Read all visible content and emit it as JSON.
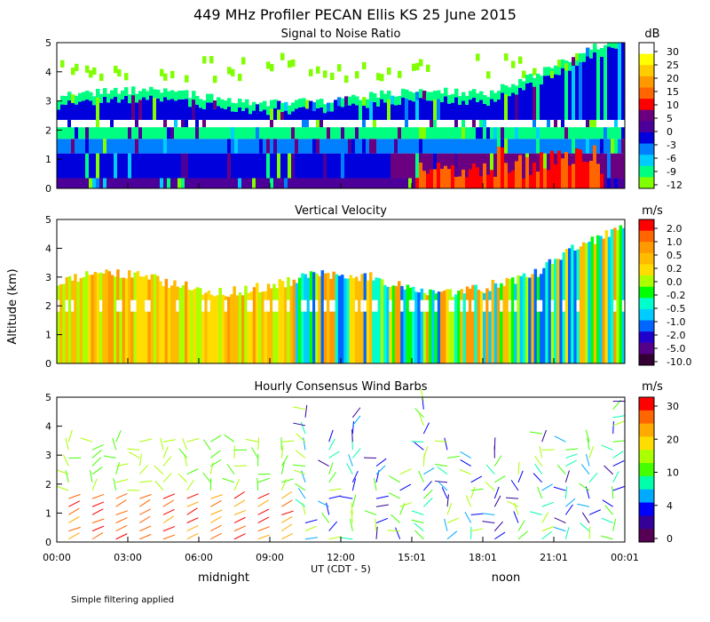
{
  "figure": {
    "title": "449 MHz Profiler PECAN Ellis KS 25 June 2015",
    "ylabel": "Altitude (km)",
    "xlabel": "UT (CDT - 5)",
    "day_labels": [
      "midnight",
      "noon"
    ],
    "footnote": "Simple filtering applied"
  },
  "colorbars": [
    {
      "unit": "dB",
      "ticks": [
        "30",
        "25",
        "20",
        "15",
        "10",
        "5",
        "0",
        "-3",
        "-6",
        "-9",
        "-12"
      ],
      "colors": [
        "#ffffff",
        "#ffff00",
        "#ffcc00",
        "#ff9900",
        "#ff6600",
        "#ff0000",
        "#6a0080",
        "#4d0099",
        "#0000dd",
        "#0080ff",
        "#00ccff",
        "#00ff80",
        "#80ff00"
      ]
    },
    {
      "unit": "m/s",
      "ticks": [
        "2.0",
        "1.0",
        "0.5",
        "0.2",
        "0.0",
        "-0.2",
        "-0.5",
        "-1.0",
        "-2.0",
        "-5.0",
        "-10.0"
      ],
      "colors": [
        "#ff0000",
        "#ff6600",
        "#ff9900",
        "#ffbb00",
        "#ffdd00",
        "#aaff00",
        "#00ff00",
        "#00ffcc",
        "#00ccff",
        "#0066ff",
        "#2200cc",
        "#550088",
        "#330033"
      ]
    },
    {
      "unit": "m/s",
      "ticks": [
        "30",
        "20",
        "10",
        "4",
        "0"
      ],
      "colors": [
        "#ff0000",
        "#ff6600",
        "#ffaa00",
        "#ffdd00",
        "#aaff00",
        "#44ff00",
        "#00ffaa",
        "#00aaff",
        "#0000ff",
        "#330099",
        "#550055"
      ]
    }
  ],
  "chart_data": [
    {
      "type": "heatmap",
      "title": "Signal to Noise Ratio",
      "colorbar_label": "dB",
      "x_ticks": [
        "00:00",
        "03:00",
        "06:00",
        "09:00",
        "12:00",
        "15:01",
        "18:01",
        "21:01",
        "00:01"
      ],
      "y_ticks": [
        "0",
        "1",
        "2",
        "3",
        "4",
        "5"
      ],
      "ylim": [
        0,
        5
      ],
      "xlim_hours": [
        0,
        24
      ]
    },
    {
      "type": "heatmap",
      "title": "Vertical Velocity",
      "colorbar_label": "m/s",
      "x_ticks": [
        "00:00",
        "03:00",
        "06:00",
        "09:00",
        "12:00",
        "15:01",
        "18:01",
        "21:01",
        "00:01"
      ],
      "y_ticks": [
        "0",
        "1",
        "2",
        "3",
        "4",
        "5"
      ],
      "ylim": [
        0,
        5
      ],
      "xlim_hours": [
        0,
        24
      ]
    },
    {
      "type": "scatter",
      "title": "Hourly Consensus Wind Barbs",
      "colorbar_label": "m/s",
      "x_ticks": [
        "00:00",
        "03:00",
        "06:00",
        "09:00",
        "12:00",
        "15:01",
        "18:01",
        "21:01",
        "00:01"
      ],
      "y_ticks": [
        "0",
        "1",
        "2",
        "3",
        "4",
        "5"
      ],
      "ylim": [
        0,
        5
      ],
      "xlim_hours": [
        0,
        24
      ]
    }
  ]
}
